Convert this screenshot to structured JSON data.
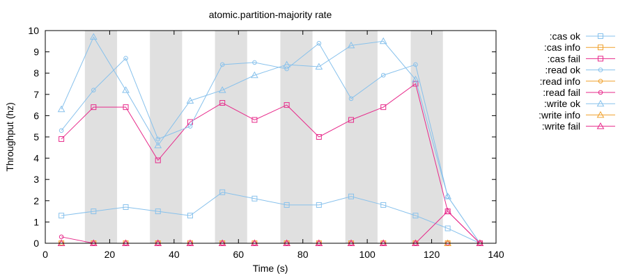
{
  "chart_data": {
    "type": "line",
    "title": "atomic.partition-majority rate",
    "xlabel": "Time (s)",
    "ylabel": "Throughput (hz)",
    "xlim": [
      0,
      140
    ],
    "ylim": [
      0,
      10
    ],
    "xticks": [
      0,
      20,
      40,
      60,
      80,
      100,
      120,
      140
    ],
    "yticks": [
      0,
      1,
      2,
      3,
      4,
      5,
      6,
      7,
      8,
      9,
      10
    ],
    "legend_position": "right-outside",
    "grid": false,
    "shaded_intervals": [
      [
        12.3,
        22.3
      ],
      [
        32.5,
        42.5
      ],
      [
        52.7,
        62.7
      ],
      [
        73,
        83
      ],
      [
        93.2,
        103.2
      ],
      [
        113.5,
        123.5
      ]
    ],
    "shade_color": "#e0e0e0",
    "series": [
      {
        "name": ":cas ok",
        "color": "#87c1ec",
        "marker": "square",
        "x": [
          5,
          15,
          25,
          35,
          45,
          55,
          65,
          75,
          85,
          95,
          105,
          115,
          125,
          135
        ],
        "y": [
          1.3,
          1.5,
          1.7,
          1.5,
          1.3,
          2.4,
          2.1,
          1.8,
          1.8,
          2.2,
          1.8,
          1.3,
          0.7,
          0
        ]
      },
      {
        "name": ":cas info",
        "color": "#f0a12c",
        "marker": "square",
        "x": [
          5,
          15,
          25,
          35,
          45,
          55,
          65,
          75,
          85,
          95,
          105,
          115,
          125,
          135
        ],
        "y": [
          0,
          0,
          0,
          0,
          0,
          0,
          0,
          0,
          0,
          0,
          0,
          0,
          0,
          0
        ]
      },
      {
        "name": ":cas fail",
        "color": "#e7298a",
        "marker": "square",
        "x": [
          5,
          15,
          25,
          35,
          45,
          55,
          65,
          75,
          85,
          95,
          105,
          115,
          125,
          135
        ],
        "y": [
          4.9,
          6.4,
          6.4,
          3.9,
          5.7,
          6.6,
          5.8,
          6.5,
          5.0,
          5.8,
          6.4,
          7.5,
          1.5,
          0
        ]
      },
      {
        "name": ":read ok",
        "color": "#87c1ec",
        "marker": "circle",
        "x": [
          5,
          15,
          25,
          35,
          45,
          55,
          65,
          75,
          85,
          95,
          105,
          115,
          125,
          135
        ],
        "y": [
          5.3,
          7.2,
          8.7,
          4.9,
          5.5,
          8.4,
          8.5,
          8.2,
          9.4,
          6.8,
          7.9,
          8.4,
          2.2,
          0
        ]
      },
      {
        "name": ":read info",
        "color": "#f0a12c",
        "marker": "circle",
        "x": [
          5,
          15,
          25,
          35,
          45,
          55,
          65,
          75,
          85,
          95,
          105,
          115,
          125,
          135
        ],
        "y": [
          0,
          0,
          0,
          0,
          0,
          0,
          0,
          0,
          0,
          0,
          0,
          0,
          0,
          0
        ]
      },
      {
        "name": ":read fail",
        "color": "#e7298a",
        "marker": "circle",
        "x": [
          5,
          15,
          25,
          35,
          45,
          55,
          65,
          75,
          85,
          95,
          105,
          115,
          125,
          135
        ],
        "y": [
          0.3,
          0,
          0,
          0,
          0,
          0,
          0,
          0,
          0,
          0,
          0,
          0,
          0,
          0
        ]
      },
      {
        "name": ":write ok",
        "color": "#87c1ec",
        "marker": "triangle",
        "x": [
          5,
          15,
          25,
          35,
          45,
          55,
          65,
          75,
          85,
          95,
          105,
          115,
          125,
          135
        ],
        "y": [
          6.3,
          9.7,
          7.2,
          4.6,
          6.7,
          7.2,
          7.9,
          8.4,
          8.3,
          9.3,
          9.5,
          7.7,
          2.2,
          0
        ]
      },
      {
        "name": ":write info",
        "color": "#f0a12c",
        "marker": "triangle",
        "x": [
          5,
          15,
          25,
          35,
          45,
          55,
          65,
          75,
          85,
          95,
          105,
          115,
          125,
          135
        ],
        "y": [
          0,
          0,
          0,
          0,
          0,
          0,
          0,
          0,
          0,
          0,
          0,
          0,
          0,
          0
        ]
      },
      {
        "name": ":write fail",
        "color": "#e7298a",
        "marker": "triangle",
        "x": [
          5,
          15,
          25,
          35,
          45,
          55,
          65,
          75,
          85,
          95,
          105,
          115,
          125,
          135
        ],
        "y": [
          0,
          0,
          0,
          0,
          0,
          0,
          0,
          0,
          0,
          0,
          0,
          0,
          1.5,
          0
        ]
      }
    ]
  }
}
